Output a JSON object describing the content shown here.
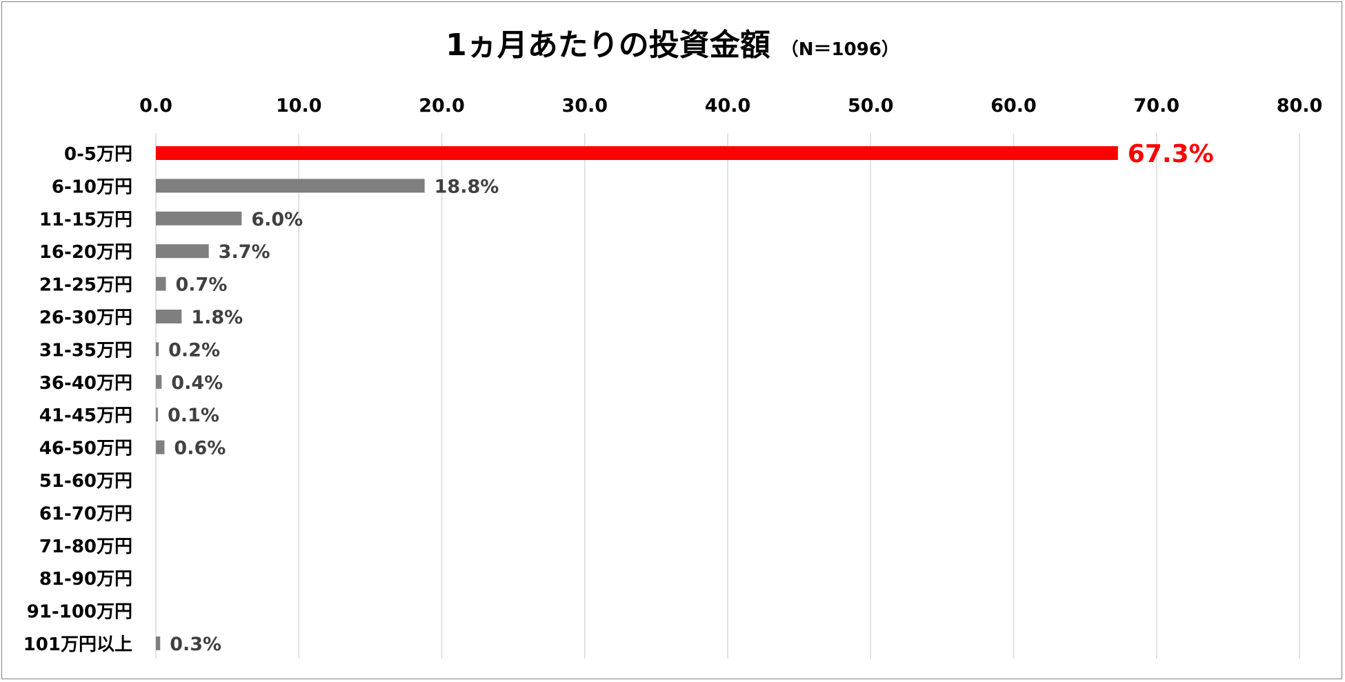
{
  "chart_data": {
    "type": "bar",
    "orientation": "horizontal",
    "title": "1ヵ月あたりの投資金額",
    "subtitle": "（N＝1096）",
    "categories": [
      "0-5万円",
      "6-10万円",
      "11-15万円",
      "16-20万円",
      "21-25万円",
      "26-30万円",
      "31-35万円",
      "36-40万円",
      "41-45万円",
      "46-50万円",
      "51-60万円",
      "61-70万円",
      "71-80万円",
      "81-90万円",
      "91-100万円",
      "101万円以上"
    ],
    "values": [
      67.3,
      18.8,
      6.0,
      3.7,
      0.7,
      1.8,
      0.2,
      0.4,
      0.1,
      0.6,
      null,
      null,
      null,
      null,
      null,
      0.3
    ],
    "value_labels": [
      "67.3%",
      "18.8%",
      "6.0%",
      "3.7%",
      "0.7%",
      "1.8%",
      "0.2%",
      "0.4%",
      "0.1%",
      "0.6%",
      "",
      "",
      "",
      "",
      "",
      "0.3%"
    ],
    "xlim": [
      0,
      80
    ],
    "x_ticks": [
      "0.0",
      "10.0",
      "20.0",
      "30.0",
      "40.0",
      "50.0",
      "60.0",
      "70.0",
      "80.0"
    ],
    "x_axis_position": "top",
    "grid": true,
    "legend": "none",
    "colors": {
      "bar": "#7f7f7f",
      "highlight": "#ff0000",
      "grid": "#d9d9d9",
      "value_label": "#404040"
    },
    "highlight_index": 0
  }
}
